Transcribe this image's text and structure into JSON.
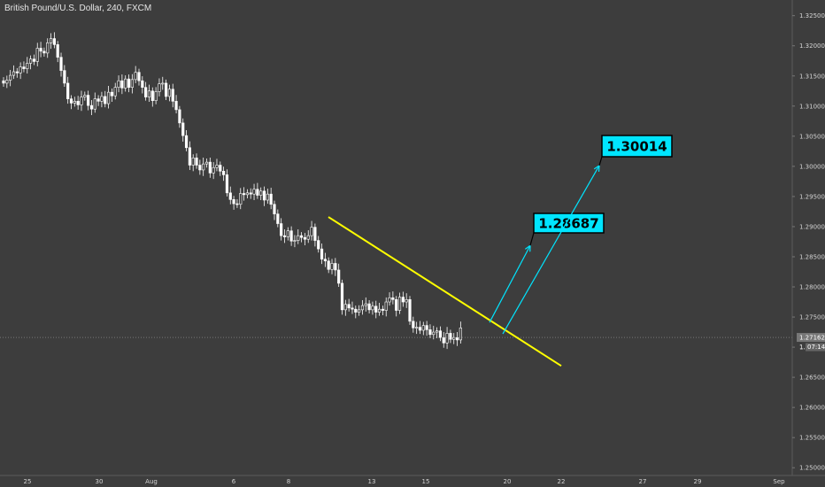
{
  "header": {
    "title": "British Pound/U.S. Dollar, 240, FXCM"
  },
  "chart_data": {
    "type": "candlestick",
    "symbol": "British Pound/U.S. Dollar",
    "timeframe": "240",
    "source": "FXCM",
    "ylim": [
      1.2468,
      1.3276
    ],
    "y_ticks": [
      "1.32500",
      "1.32000",
      "1.31500",
      "1.31000",
      "1.30500",
      "1.30000",
      "1.29500",
      "1.29000",
      "1.28500",
      "1.28000",
      "1.27500",
      "1.27000",
      "1.26500",
      "1.26000",
      "1.25500",
      "1.25000"
    ],
    "x_ticks": [
      "25",
      "30",
      "Aug",
      "6",
      "8",
      "13",
      "15",
      "20",
      "22",
      "27",
      "29",
      "Sep"
    ],
    "last_price": "1.27162",
    "countdown": "07:14",
    "countdown_prefix": "1.2",
    "closes": [
      1.3138,
      1.3143,
      1.3151,
      1.3157,
      1.3155,
      1.3165,
      1.3162,
      1.3171,
      1.3178,
      1.3174,
      1.3196,
      1.3191,
      1.3188,
      1.3205,
      1.3212,
      1.3202,
      1.3181,
      1.3159,
      1.3138,
      1.3112,
      1.3105,
      1.3108,
      1.3102,
      1.3115,
      1.3118,
      1.3101,
      1.3095,
      1.3112,
      1.3108,
      1.3116,
      1.3104,
      1.3123,
      1.3117,
      1.3131,
      1.3142,
      1.313,
      1.3145,
      1.3131,
      1.3144,
      1.3156,
      1.3142,
      1.3131,
      1.3115,
      1.3125,
      1.3109,
      1.3124,
      1.3137,
      1.3138,
      1.3116,
      1.3128,
      1.3108,
      1.3094,
      1.3072,
      1.3051,
      1.3031,
      1.3002,
      1.3014,
      1.3002,
      1.2994,
      1.3004,
      1.3007,
      1.2989,
      1.2998,
      1.3002,
      1.2992,
      1.2986,
      1.2956,
      1.2945,
      1.2938,
      1.2937,
      1.2955,
      1.2953,
      1.2956,
      1.2954,
      1.2962,
      1.2952,
      1.2959,
      1.2944,
      1.2954,
      1.2937,
      1.2921,
      1.2905,
      1.2885,
      1.2883,
      1.2893,
      1.2876,
      1.2877,
      1.2885,
      1.2882,
      1.2879,
      1.2885,
      1.2899,
      1.2877,
      1.2863,
      1.2846,
      1.2843,
      1.2829,
      1.2839,
      1.2828,
      1.2806,
      1.2762,
      1.2771,
      1.2765,
      1.2763,
      1.2758,
      1.2762,
      1.2769,
      1.2772,
      1.2762,
      1.2768,
      1.2758,
      1.2763,
      1.2761,
      1.2775,
      1.2782,
      1.2779,
      1.2761,
      1.2783,
      1.2775,
      1.2779,
      1.2743,
      1.2732,
      1.2733,
      1.2728,
      1.2736,
      1.2729,
      1.2721,
      1.2725,
      1.2727,
      1.2716,
      1.2707,
      1.2723,
      1.2713,
      1.2716,
      1.2712,
      1.2732
    ],
    "trendline": {
      "start": [
        "Aug 8",
        1.2916
      ],
      "end": [
        "Aug 22",
        1.2669
      ]
    },
    "projection_arrows": [
      {
        "label": "1.28687",
        "target": 1.28687
      },
      {
        "label": "1.30014",
        "target": 1.30014
      }
    ],
    "colors": {
      "background": "#3d3d3d",
      "up_candle": "#ffffff",
      "down_candle": "#ffffff",
      "trendline": "#ffff00",
      "arrow": "#00e5ff",
      "label_bg": "#00e5ff",
      "last_price_bg": "#777777",
      "axis_text": "#d4d4d4"
    }
  }
}
